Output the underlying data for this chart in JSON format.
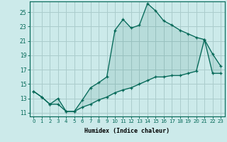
{
  "xlabel": "Humidex (Indice chaleur)",
  "ylabel": "",
  "bg_color": "#cceaea",
  "grid_color": "#aacccc",
  "line_color": "#006655",
  "x": [
    0,
    1,
    2,
    3,
    4,
    5,
    6,
    7,
    8,
    9,
    10,
    11,
    12,
    13,
    14,
    15,
    16,
    17,
    18,
    19,
    20,
    21,
    22,
    23
  ],
  "y_upper": [
    14.0,
    13.2,
    12.2,
    13.0,
    11.2,
    11.2,
    12.8,
    14.5,
    15.2,
    16.0,
    22.5,
    24.0,
    22.8,
    23.2,
    26.2,
    25.2,
    23.8,
    23.2,
    22.5,
    22.0,
    21.5,
    21.2,
    19.2,
    17.5
  ],
  "y_lower": [
    14.0,
    13.2,
    12.2,
    12.2,
    11.2,
    11.2,
    11.8,
    12.2,
    12.8,
    13.2,
    13.8,
    14.2,
    14.5,
    15.0,
    15.5,
    16.0,
    16.0,
    16.2,
    16.2,
    16.5,
    16.8,
    21.2,
    16.5,
    16.5
  ],
  "ylim": [
    10.5,
    26.5
  ],
  "yticks": [
    11,
    13,
    15,
    17,
    19,
    21,
    23,
    25
  ],
  "xlim": [
    -0.5,
    23.5
  ],
  "xticks": [
    0,
    1,
    2,
    3,
    4,
    5,
    6,
    7,
    8,
    9,
    10,
    11,
    12,
    13,
    14,
    15,
    16,
    17,
    18,
    19,
    20,
    21,
    22,
    23
  ]
}
